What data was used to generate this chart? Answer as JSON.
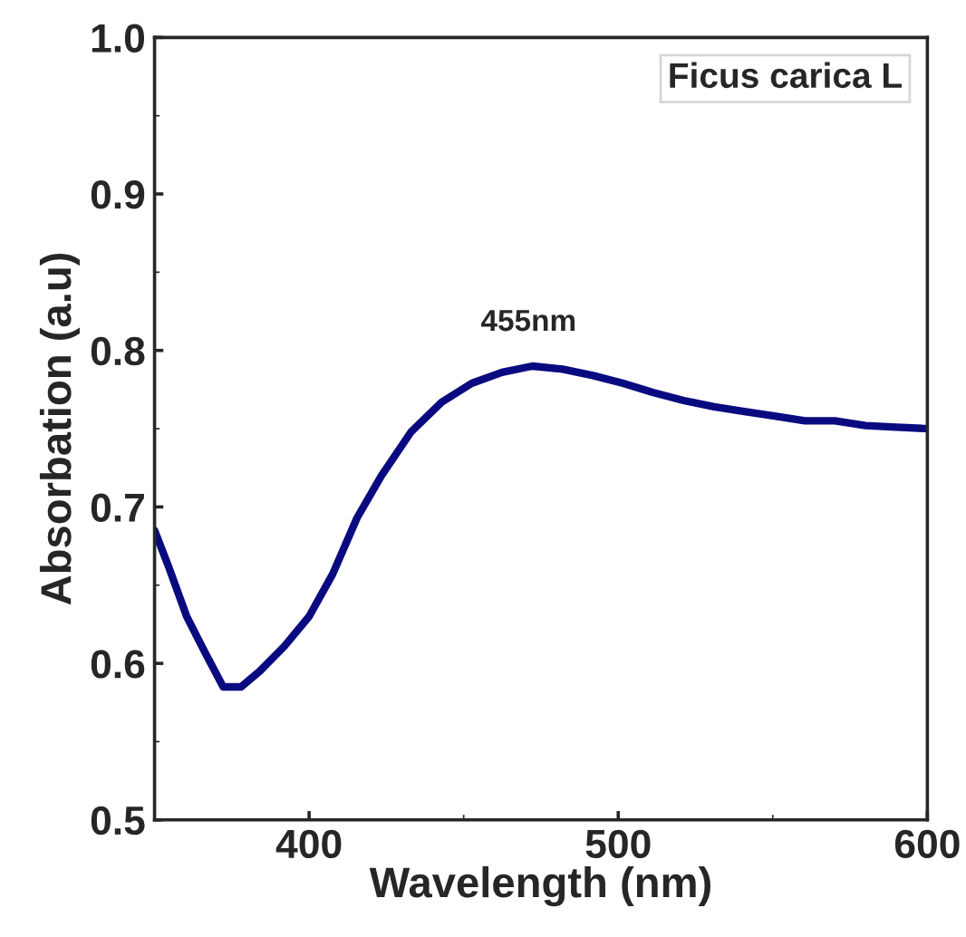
{
  "chart_data": {
    "type": "line",
    "xlabel": "Wavelength (nm)",
    "ylabel": "Absorbation (a.u)",
    "xlim": [
      350,
      600
    ],
    "xticks": [
      400,
      500,
      600
    ],
    "ylim": [
      0.5,
      1.0
    ],
    "yticks": [
      0.5,
      0.6,
      0.7,
      0.8,
      0.9,
      {
        "value": 1,
        "label": "1.0"
      }
    ],
    "grid": false,
    "legend": "top right",
    "marker": "none",
    "line_style": "solid",
    "annotations": [
      {
        "text": "455nm",
        "x": 471,
        "y": 0.79
      }
    ],
    "series": [
      {
        "name": "Ficus carica L",
        "color": "#0a0a80",
        "x": [
          350,
          354.5,
          360.4,
          366.3,
          372.2,
          378,
          384,
          392,
          400,
          407.6,
          415.5,
          423.4,
          433,
          442.9,
          452.6,
          462.4,
          472.2,
          482,
          491.8,
          501.6,
          511.4,
          521.2,
          531,
          540.8,
          550.6,
          560.4,
          570.1,
          580,
          589.8,
          600
        ],
        "values": [
          0.685,
          0.662,
          0.63,
          0.607,
          0.585,
          0.585,
          0.595,
          0.611,
          0.63,
          0.657,
          0.693,
          0.72,
          0.748,
          0.767,
          0.779,
          0.786,
          0.79,
          0.788,
          0.784,
          0.779,
          0.773,
          0.768,
          0.764,
          0.761,
          0.758,
          0.755,
          0.755,
          0.752,
          0.751,
          0.75
        ]
      }
    ]
  }
}
